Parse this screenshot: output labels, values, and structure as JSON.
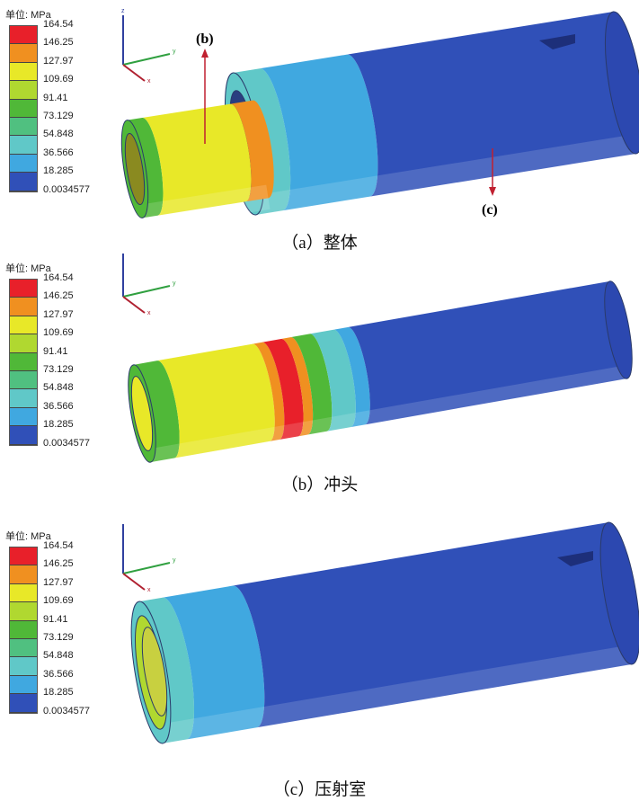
{
  "legend": {
    "unit": "单位: MPa",
    "labels": [
      "164.54",
      "146.25",
      "127.97",
      "109.69",
      "91.41",
      "73.129",
      "54.848",
      "36.566",
      "18.285",
      "0.0034577"
    ],
    "colors": [
      "#e8202a",
      "#f09020",
      "#e8e828",
      "#b0d830",
      "#50b838",
      "#50c080",
      "#60c8c8",
      "#40a8e0",
      "#3050b8"
    ]
  },
  "axes": {
    "z": "z",
    "y": "y",
    "x": "x"
  },
  "panels": [
    {
      "caption": "（a）整体",
      "arrow_b": "(b)",
      "arrow_c": "(c)"
    },
    {
      "caption": "（b）冲头"
    },
    {
      "caption": "（c）压射室"
    }
  ]
}
